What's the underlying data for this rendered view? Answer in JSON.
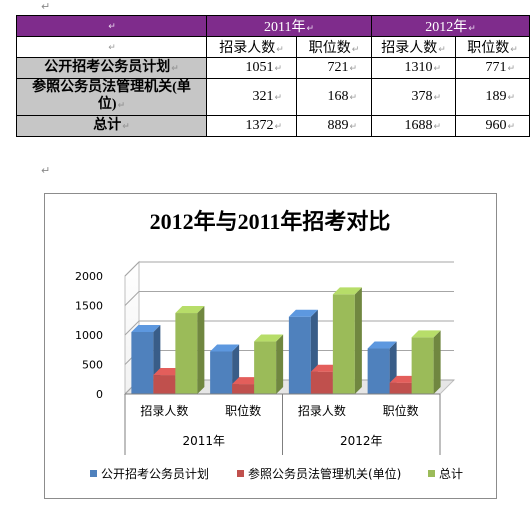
{
  "paragraph_mark": "↵",
  "table": {
    "years": [
      "2011年",
      "2012年"
    ],
    "subheaders": [
      "招录人数",
      "职位数",
      "招录人数",
      "职位数"
    ],
    "rows": [
      {
        "label": "公开招考公务员计划",
        "values": [
          "1051",
          "721",
          "1310",
          "771"
        ]
      },
      {
        "label": "参照公务员法管理机关(单位)",
        "values": [
          "321",
          "168",
          "378",
          "189"
        ]
      },
      {
        "label": "总计",
        "values": [
          "1372",
          "889",
          "1688",
          "960"
        ]
      }
    ]
  },
  "chart_data": {
    "type": "bar",
    "title": "2012年与2011年招考对比",
    "categories": [
      "招录人数",
      "职位数",
      "招录人数",
      "职位数"
    ],
    "groups": [
      {
        "label": "2011年",
        "categories": [
          "招录人数",
          "职位数"
        ]
      },
      {
        "label": "2012年",
        "categories": [
          "招录人数",
          "职位数"
        ]
      }
    ],
    "series": [
      {
        "name": "公开招考公务员计划",
        "color": "#4f81bd",
        "values": [
          1051,
          721,
          1310,
          771
        ]
      },
      {
        "name": "参照公务员法管理机关(单位)",
        "color": "#c0504d",
        "values": [
          321,
          168,
          378,
          189
        ]
      },
      {
        "name": "总计",
        "color": "#9bbb59",
        "values": [
          1372,
          889,
          1688,
          960
        ]
      }
    ],
    "yticks": [
      "0",
      "500",
      "1000",
      "1500",
      "2000"
    ],
    "ylim": [
      0,
      2000
    ],
    "grid": true,
    "three_d": true,
    "legend_position": "bottom"
  }
}
